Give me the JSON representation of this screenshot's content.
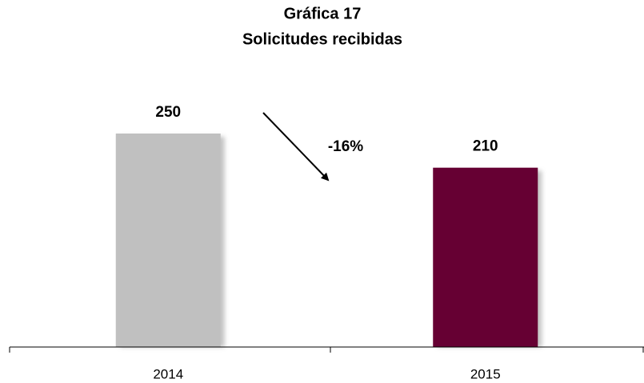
{
  "chart_data": {
    "type": "bar",
    "title": "Gráfica 17",
    "subtitle": "Solicitudes recibidas",
    "categories": [
      "2014",
      "2015"
    ],
    "values": [
      250,
      210
    ],
    "colors": [
      "#c0c0c0",
      "#660033"
    ],
    "annotations": [
      {
        "text": "-16%"
      }
    ]
  }
}
